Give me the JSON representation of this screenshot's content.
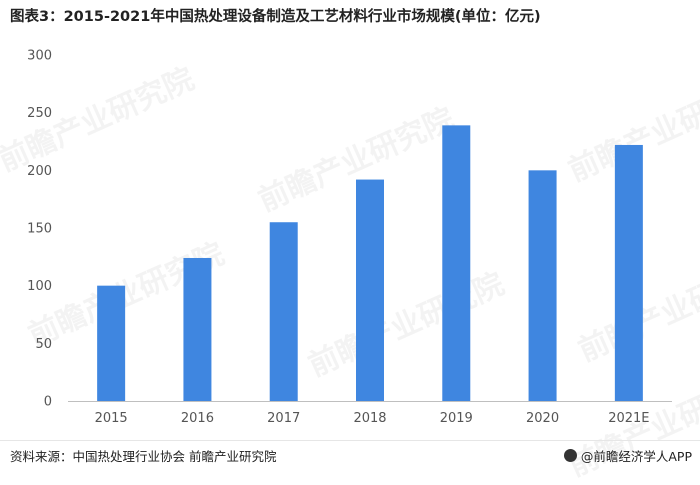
{
  "title": "图表3：2015-2021年中国热处理设备制造及工艺材料行业市场规模(单位：亿元)",
  "source": "资料来源：中国热处理行业协会 前瞻产业研究院",
  "brand": "@前瞻经济学人APP",
  "watermark_text": "前瞻产业研究院",
  "colors": {
    "bar": "#3f86e0",
    "axis": "#bfbfbf",
    "text": "#555555"
  },
  "chart_data": {
    "type": "bar",
    "title": "图表3：2015-2021年中国热处理设备制造及工艺材料行业市场规模(单位：亿元)",
    "categories": [
      "2015",
      "2016",
      "2017",
      "2018",
      "2019",
      "2020",
      "2021E"
    ],
    "values": [
      100,
      124,
      155,
      192,
      239,
      200,
      222
    ],
    "ylim": [
      0,
      300
    ],
    "yticks": [
      0,
      50,
      100,
      150,
      200,
      250,
      300
    ],
    "xlabel": "",
    "ylabel": "",
    "grid": false,
    "legend": "none"
  }
}
